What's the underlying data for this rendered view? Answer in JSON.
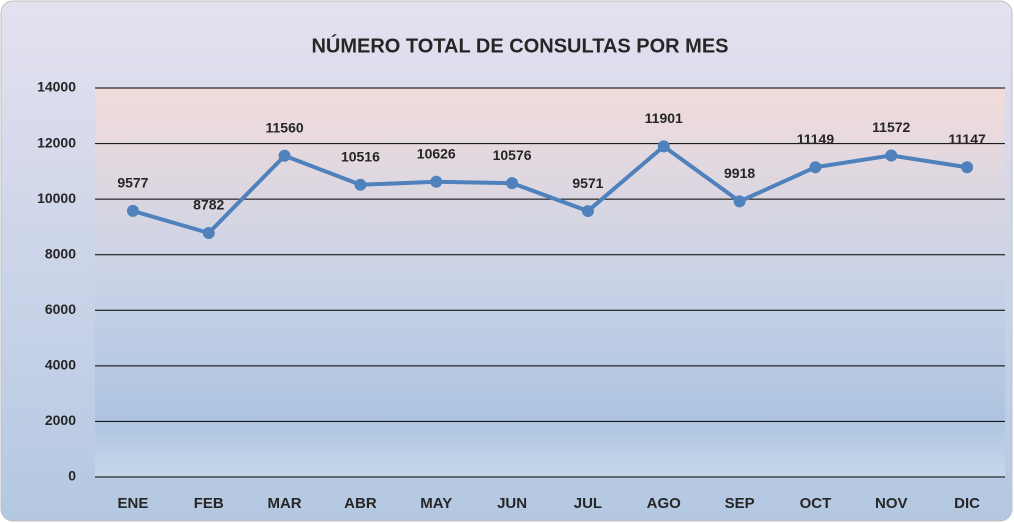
{
  "chart_data": {
    "type": "line",
    "title": "NÚMERO TOTAL DE CONSULTAS POR MES",
    "categories": [
      "ENE",
      "FEB",
      "MAR",
      "ABR",
      "MAY",
      "JUN",
      "JUL",
      "AGO",
      "SEP",
      "OCT",
      "NOV",
      "DIC"
    ],
    "values": [
      9577,
      8782,
      11560,
      10516,
      10626,
      10576,
      9571,
      11901,
      9918,
      11149,
      11572,
      11147
    ],
    "color": "#4f81bd",
    "ylim": [
      0,
      14000
    ],
    "yticks": [
      0,
      2000,
      4000,
      6000,
      8000,
      10000,
      12000,
      14000
    ],
    "grid": true
  }
}
